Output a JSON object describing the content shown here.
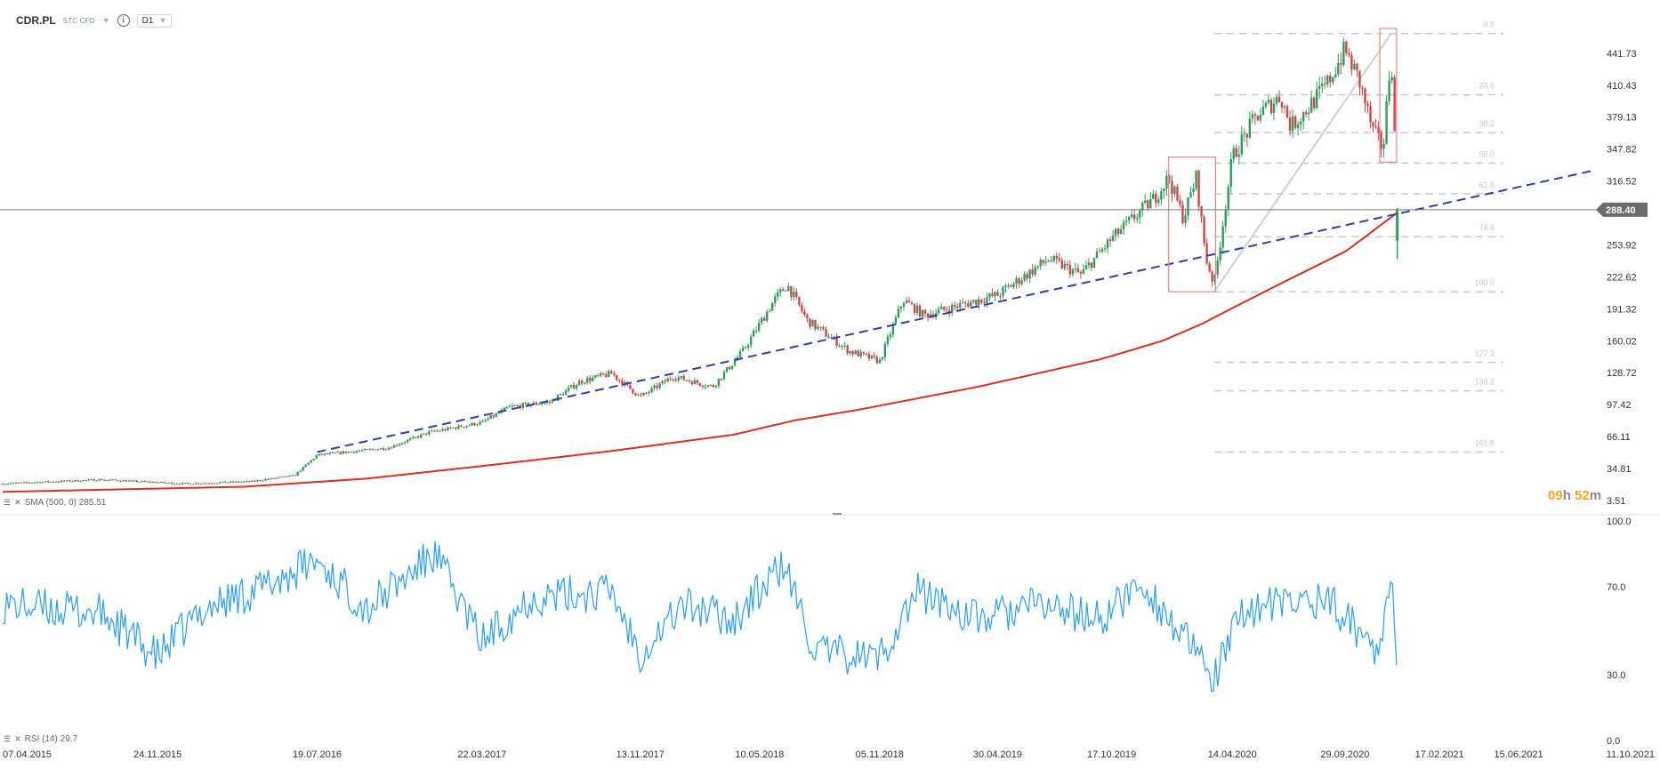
{
  "toolbar": {
    "symbol": "CDR.PL",
    "market": "STC CFD",
    "timeframe": "D1"
  },
  "timer": {
    "hours": "09",
    "h_unit": "h",
    "minutes": "52",
    "m_unit": "m"
  },
  "indicators": {
    "sma_label": "SMA (500, 0) 285.51",
    "rsi_label": "RSI (14) 29.7"
  },
  "colors": {
    "bull": "#2e9e5b",
    "bear": "#d64545",
    "sma": "#d93025",
    "trend": "#2f3fa8",
    "rsi": "#2a9df4",
    "fib": "#c8c8c8",
    "price_line": "#777777"
  },
  "chart_data": [
    {
      "type": "candlestick",
      "title": "CDR.PL",
      "timeframe": "D1",
      "x_tick_labels": [
        "07.04.2015",
        "24.11.2015",
        "19.07.2016",
        "22.03.2017",
        "13.11.2017",
        "10.05.2018",
        "05.11.2018",
        "30.04.2019",
        "17.10.2019",
        "14.04.2020",
        "29.09.2020",
        "17.02.2021",
        "15.06.2021",
        "11.10.2021"
      ],
      "x_start": "2015-04-07",
      "y_tick_labels": [
        "441.73",
        "410.43",
        "379.13",
        "347.82",
        "316.52",
        "253.92",
        "222.62",
        "191.32",
        "160.02",
        "128.72",
        "97.42",
        "66.11",
        "34.81",
        "3.51"
      ],
      "ylim": [
        3.51,
        466
      ],
      "current_price": 288.4,
      "price_path": [
        [
          "2015-04-07",
          20
        ],
        [
          "2015-09-01",
          24
        ],
        [
          "2016-01-01",
          20
        ],
        [
          "2016-04-10",
          22
        ],
        [
          "2016-06-15",
          28
        ],
        [
          "2016-07-19",
          48
        ],
        [
          "2016-11-01",
          55
        ],
        [
          "2017-01-01",
          70
        ],
        [
          "2017-03-22",
          80
        ],
        [
          "2017-05-01",
          95
        ],
        [
          "2017-07-01",
          100
        ],
        [
          "2017-08-15",
          120
        ],
        [
          "2017-10-01",
          128
        ],
        [
          "2017-11-13",
          105
        ],
        [
          "2018-01-01",
          125
        ],
        [
          "2018-03-01",
          115
        ],
        [
          "2018-04-15",
          150
        ],
        [
          "2018-06-01",
          200
        ],
        [
          "2018-06-20",
          215
        ],
        [
          "2018-07-20",
          180
        ],
        [
          "2018-09-20",
          150
        ],
        [
          "2018-11-05",
          140
        ],
        [
          "2018-12-10",
          200
        ],
        [
          "2019-01-10",
          185
        ],
        [
          "2019-04-30",
          205
        ],
        [
          "2019-07-15",
          240
        ],
        [
          "2019-09-01",
          225
        ],
        [
          "2019-10-17",
          260
        ],
        [
          "2019-12-20",
          300
        ],
        [
          "2020-01-10",
          320
        ],
        [
          "2020-02-01",
          280
        ],
        [
          "2020-02-20",
          320
        ],
        [
          "2020-03-06",
          240
        ],
        [
          "2020-03-18",
          215
        ],
        [
          "2020-04-14",
          340
        ],
        [
          "2020-05-20",
          380
        ],
        [
          "2020-06-25",
          400
        ],
        [
          "2020-07-10",
          370
        ],
        [
          "2020-08-01",
          385
        ],
        [
          "2020-09-01",
          410
        ],
        [
          "2020-09-29",
          445
        ],
        [
          "2020-10-20",
          415
        ],
        [
          "2020-11-10",
          365
        ],
        [
          "2020-11-25",
          348
        ],
        [
          "2020-12-07",
          445
        ],
        [
          "2020-12-11",
          380
        ],
        [
          "2020-12-14",
          325
        ],
        [
          "2020-12-15",
          291
        ],
        [
          "2020-12-16",
          288.4
        ]
      ],
      "last_candle": {
        "open": 288.4,
        "high": 290,
        "low": 240,
        "close": 258
      },
      "sma_500": {
        "name": "SMA (500, 0)",
        "value": 285.51,
        "path": [
          [
            "2015-04-07",
            12
          ],
          [
            "2016-04-01",
            17
          ],
          [
            "2016-10-01",
            25
          ],
          [
            "2017-04-01",
            38
          ],
          [
            "2017-10-01",
            52
          ],
          [
            "2018-04-01",
            68
          ],
          [
            "2018-07-01",
            82
          ],
          [
            "2018-10-01",
            92
          ],
          [
            "2019-04-01",
            115
          ],
          [
            "2019-10-01",
            142
          ],
          [
            "2020-01-01",
            160
          ],
          [
            "2020-03-01",
            177
          ],
          [
            "2020-04-14",
            192
          ],
          [
            "2020-07-01",
            218
          ],
          [
            "2020-10-01",
            248
          ],
          [
            "2020-12-16",
            285.51
          ]
        ]
      },
      "trendline": {
        "from": [
          "2016-07-19",
          51
        ],
        "to": [
          "2021-10-06",
          327
        ]
      },
      "fib_retracement": {
        "from": [
          "2020-03-18",
          208
        ],
        "to": [
          "2020-12-07",
          461
        ],
        "levels": [
          {
            "label": "0.0",
            "value": 461
          },
          {
            "label": "23.6",
            "value": 401
          },
          {
            "label": "38.2",
            "value": 364
          },
          {
            "label": "50.0",
            "value": 334
          },
          {
            "label": "61.8",
            "value": 304
          },
          {
            "label": "78.6",
            "value": 262
          },
          {
            "label": "100.0",
            "value": 208
          },
          {
            "label": "127.2",
            "value": 139
          },
          {
            "label": "138.2",
            "value": 111
          },
          {
            "label": "161.8",
            "value": 51
          }
        ]
      },
      "highlight_boxes": [
        {
          "from": "2020-01-10",
          "to": "2020-03-20",
          "low": 208,
          "high": 340
        },
        {
          "from": "2020-11-20",
          "to": "2020-12-15",
          "low": 335,
          "high": 466
        }
      ]
    },
    {
      "type": "line",
      "title": "RSI (14)",
      "current_value": 29.7,
      "ylim": [
        0,
        100
      ],
      "y_tick_labels": [
        "100.0",
        "70.0",
        "30.0",
        "0.0"
      ],
      "levels_path": [
        [
          "2015-04-07",
          62
        ],
        [
          "2015-09-01",
          58
        ],
        [
          "2015-11-24",
          38
        ],
        [
          "2016-02-01",
          60
        ],
        [
          "2016-05-01",
          70
        ],
        [
          "2016-07-19",
          82
        ],
        [
          "2016-10-01",
          60
        ],
        [
          "2017-01-10",
          85
        ],
        [
          "2017-03-22",
          45
        ],
        [
          "2017-06-01",
          65
        ],
        [
          "2017-10-01",
          68
        ],
        [
          "2017-11-13",
          40
        ],
        [
          "2018-01-15",
          62
        ],
        [
          "2018-04-01",
          55
        ],
        [
          "2018-06-15",
          80
        ],
        [
          "2018-08-01",
          40
        ],
        [
          "2018-11-05",
          38
        ],
        [
          "2019-01-01",
          68
        ],
        [
          "2019-04-01",
          55
        ],
        [
          "2019-07-01",
          62
        ],
        [
          "2019-10-01",
          55
        ],
        [
          "2019-12-01",
          72
        ],
        [
          "2020-03-18",
          28
        ],
        [
          "2020-05-01",
          60
        ],
        [
          "2020-07-01",
          62
        ],
        [
          "2020-09-01",
          65
        ],
        [
          "2020-11-15",
          42
        ],
        [
          "2020-12-07",
          72
        ],
        [
          "2020-12-16",
          29.7
        ]
      ]
    }
  ]
}
